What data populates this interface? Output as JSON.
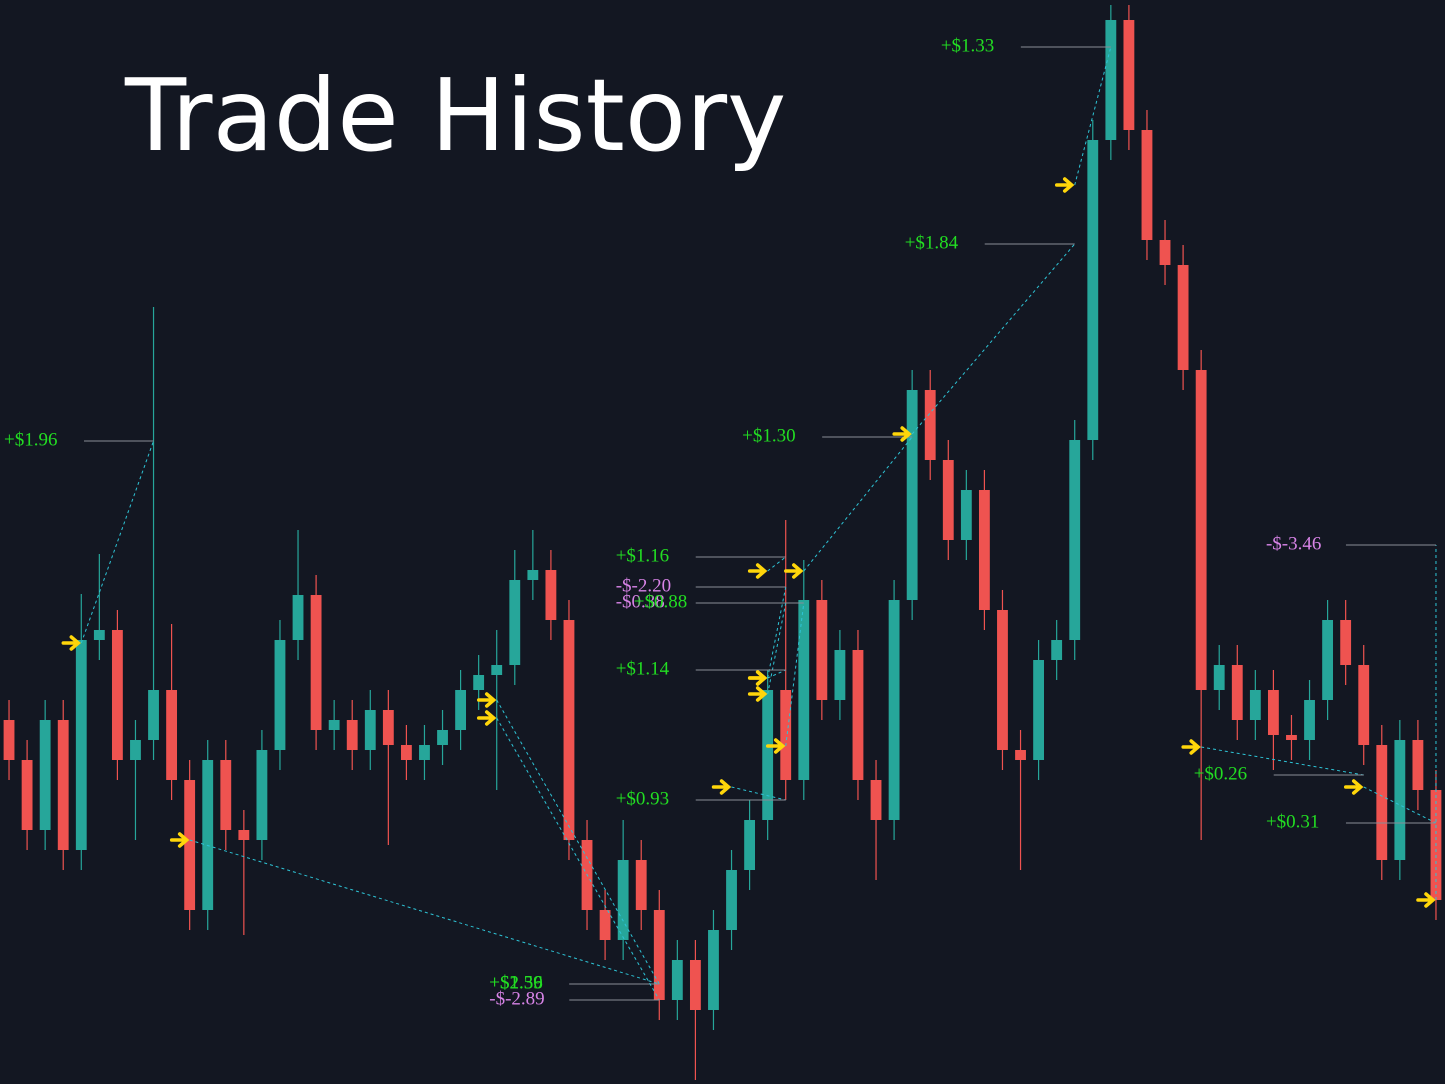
{
  "chart_data": {
    "type": "candlestick",
    "title": "Trade History",
    "up_color": "#26a69a",
    "down_color": "#ef5350",
    "ylim": [
      0,
      108.4
    ],
    "open": [
      36.4,
      32.4,
      25.4,
      36.4,
      23.4,
      44.4,
      45.4,
      32.4,
      34.4,
      39.4,
      30.4,
      17.4,
      32.4,
      25.4,
      24.4,
      33.4,
      44.4,
      48.9,
      35.4,
      36.4,
      33.4,
      37.4,
      33.9,
      32.4,
      33.9,
      35.4,
      39.4,
      40.9,
      41.9,
      50.4,
      51.4,
      46.4,
      24.4,
      17.4,
      14.4,
      22.4,
      17.4,
      8.4,
      12.4,
      7.4,
      15.4,
      21.4,
      26.4,
      39.4,
      30.4,
      48.4,
      38.4,
      43.4,
      30.4,
      26.4,
      48.4,
      69.4,
      62.4,
      54.4,
      59.4,
      47.4,
      33.4,
      32.4,
      42.4,
      44.4,
      64.4,
      94.4,
      106.4,
      95.4,
      84.4,
      81.9,
      71.4,
      39.4,
      41.9,
      36.4,
      39.4,
      34.9,
      34.4,
      38.4,
      46.4,
      41.9,
      33.9,
      22.4,
      34.4,
      29.4
    ],
    "high": [
      38.4,
      34.4,
      38.4,
      38.4,
      49,
      53,
      47.4,
      36.4,
      77.7,
      46,
      32.4,
      34.4,
      34.4,
      27.4,
      35.4,
      46.4,
      55.4,
      50.9,
      38.4,
      38.4,
      39.4,
      39.4,
      35.9,
      35.9,
      37.4,
      41.4,
      42.9,
      45.4,
      53.4,
      55.4,
      53.4,
      48.4,
      26.4,
      19.4,
      26.4,
      24.4,
      19.4,
      14.4,
      14.4,
      17.4,
      23.4,
      28.4,
      41.4,
      56.4,
      52.4,
      50.4,
      45.4,
      45.4,
      32.4,
      50.4,
      71.4,
      71.4,
      64.4,
      61.4,
      61.4,
      49.4,
      35.4,
      44.4,
      46.4,
      66.4,
      96.4,
      107.9,
      107.9,
      97.4,
      86.4,
      83.9,
      73.4,
      43.9,
      43.9,
      41.4,
      41.4,
      36.9,
      40.4,
      48.4,
      48.4,
      43.9,
      35.9,
      36.4,
      36.4,
      31.4
    ],
    "low": [
      30.4,
      23.4,
      23.4,
      21.4,
      21.4,
      42.4,
      30.4,
      24.4,
      32.4,
      28.4,
      15.4,
      15.4,
      23.4,
      14.9,
      22.4,
      31.4,
      42.4,
      33.4,
      33.4,
      31.4,
      31.4,
      23.9,
      30.4,
      30.4,
      31.9,
      33.4,
      37.4,
      29.4,
      39.9,
      48.4,
      44.4,
      22.4,
      15.4,
      12.4,
      12.4,
      15.4,
      6.4,
      6.4,
      0.4,
      5.4,
      13.4,
      19.4,
      24.4,
      28.4,
      28.4,
      36.4,
      36.4,
      28.4,
      20.4,
      24.4,
      46.4,
      60.4,
      52.4,
      52.4,
      45.4,
      31.4,
      21.4,
      30.4,
      40.4,
      42.4,
      62.4,
      92.4,
      93.4,
      82.4,
      79.9,
      69.4,
      24.4,
      37.4,
      34.4,
      34.4,
      31.4,
      32.4,
      32.4,
      36.4,
      39.9,
      31.9,
      20.4,
      20.4,
      27.4,
      16.4
    ],
    "close": [
      32.4,
      25.4,
      36.4,
      23.4,
      44.4,
      45.4,
      32.4,
      34.4,
      39.4,
      30.4,
      17.4,
      32.4,
      25.4,
      24.4,
      33.4,
      44.4,
      48.9,
      35.4,
      36.4,
      33.4,
      37.4,
      33.9,
      32.4,
      33.9,
      35.4,
      39.4,
      40.9,
      41.9,
      50.4,
      51.4,
      46.4,
      24.4,
      17.4,
      14.4,
      22.4,
      17.4,
      8.4,
      12.4,
      7.4,
      15.4,
      21.4,
      26.4,
      39.4,
      30.4,
      48.4,
      38.4,
      43.4,
      30.4,
      26.4,
      48.4,
      69.4,
      62.4,
      54.4,
      59.4,
      47.4,
      33.4,
      32.4,
      42.4,
      44.4,
      64.4,
      94.4,
      106.4,
      95.4,
      84.4,
      81.9,
      71.4,
      39.4,
      41.9,
      36.4,
      39.4,
      34.9,
      34.4,
      38.4,
      46.4,
      41.9,
      33.9,
      22.4,
      34.4,
      29.4,
      18.4
    ],
    "trades": [
      {
        "pnl": 1.96,
        "pnl_label": "+$1.96",
        "entry": [
          4,
          44.1
        ],
        "exit": [
          8,
          64.3
        ]
      },
      {
        "pnl": 1.39,
        "pnl_label": "+$1.39",
        "entry": [
          10,
          24.4
        ],
        "exit": [
          36,
          10.0
        ]
      },
      {
        "pnl": 2.56,
        "pnl_label": "+$2.56",
        "entry": [
          27,
          38.4
        ],
        "exit": [
          36,
          10.0
        ]
      },
      {
        "pnl": -2.89,
        "pnl_label": "-$-2.89",
        "entry": [
          27,
          36.6
        ],
        "exit": [
          36,
          8.4
        ]
      },
      {
        "pnl": 1.16,
        "pnl_label": "+$1.16",
        "entry": [
          42,
          51.3
        ],
        "exit": [
          43,
          52.7
        ]
      },
      {
        "pnl": -2.2,
        "pnl_label": "-$-2.20",
        "entry": [
          42,
          40.6
        ],
        "exit": [
          43,
          49.7
        ]
      },
      {
        "pnl": -0.38,
        "pnl_label": "-$0.38",
        "entry": [
          42,
          39.0
        ],
        "exit": [
          43,
          48.1
        ]
      },
      {
        "pnl": 0.88,
        "pnl_label": "+$0.88",
        "entry": [
          43,
          33.8
        ],
        "exit": [
          44,
          48.1
        ]
      },
      {
        "pnl": 1.14,
        "pnl_label": "+$1.14",
        "entry": [
          42,
          40.6
        ],
        "exit": [
          43,
          41.4
        ]
      },
      {
        "pnl": 0.93,
        "pnl_label": "+$0.93",
        "entry": [
          40,
          29.7
        ],
        "exit": [
          43,
          28.4
        ]
      },
      {
        "pnl": 1.3,
        "pnl_label": "+$1.30",
        "entry": [
          44,
          51.3
        ],
        "exit": [
          50,
          64.7
        ]
      },
      {
        "pnl": 1.84,
        "pnl_label": "+$1.84",
        "entry": [
          50,
          65.0
        ],
        "exit": [
          59,
          84.0
        ]
      },
      {
        "pnl": 1.33,
        "pnl_label": "+$1.33",
        "entry": [
          59,
          89.9
        ],
        "exit": [
          61,
          103.7
        ]
      },
      {
        "pnl": 0.26,
        "pnl_label": "+$0.26",
        "entry": [
          66,
          33.7
        ],
        "exit": [
          75,
          30.9
        ]
      },
      {
        "pnl": 0.31,
        "pnl_label": "+$0.31",
        "entry": [
          75,
          29.7
        ],
        "exit": [
          79,
          26.1
        ]
      },
      {
        "pnl": -3.46,
        "pnl_label": "-$-3.46",
        "entry": [
          79,
          18.4
        ],
        "exit": [
          79,
          53.9
        ]
      }
    ]
  }
}
